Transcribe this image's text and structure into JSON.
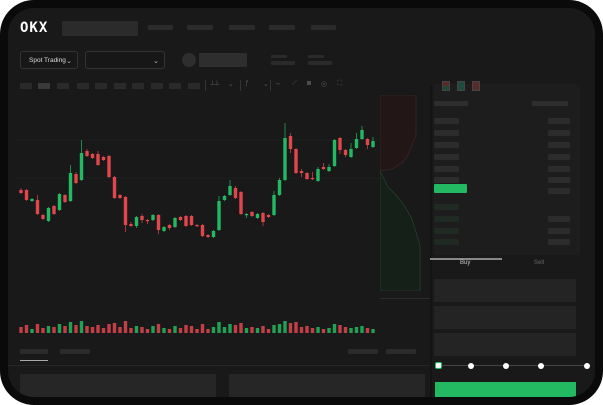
{
  "header": {
    "logo": "OKX"
  },
  "trade_bar": {
    "mode_select": "Spot Trading",
    "pair_select": ""
  },
  "orderbook": {
    "view_icons": [
      "orderbook-both-icon",
      "orderbook-bids-icon",
      "orderbook-asks-icon"
    ]
  },
  "order_form": {
    "tabs": [
      {
        "label": "Buy",
        "active": true
      },
      {
        "label": "Sell",
        "active": false
      }
    ],
    "slider_percent": 0
  },
  "colors": {
    "up": "#23b862",
    "down": "#e0474d",
    "bg": "#191919",
    "accent": "#23b862"
  },
  "chart_data": {
    "type": "candlestick",
    "ohlc": [
      [
        53,
        55,
        49,
        50
      ],
      [
        53,
        54,
        42,
        43
      ],
      [
        42,
        45,
        41,
        44
      ],
      [
        43,
        48,
        28,
        29
      ],
      [
        28,
        29,
        23,
        24
      ],
      [
        22,
        36,
        21,
        35
      ],
      [
        37,
        38,
        28,
        29
      ],
      [
        33,
        50,
        32,
        49
      ],
      [
        48,
        49,
        40,
        41
      ],
      [
        42,
        78,
        41,
        70
      ],
      [
        69,
        71,
        59,
        60
      ],
      [
        63,
        103,
        62,
        90
      ],
      [
        92,
        94,
        86,
        87
      ],
      [
        89,
        90,
        84,
        85
      ],
      [
        89,
        92,
        77,
        78
      ],
      [
        86,
        87,
        82,
        83
      ],
      [
        87,
        88,
        65,
        66
      ],
      [
        66,
        67,
        44,
        45
      ],
      [
        48,
        49,
        44,
        45
      ],
      [
        46,
        47,
        11,
        18
      ],
      [
        19,
        21,
        16,
        17
      ],
      [
        17,
        27,
        15,
        26
      ],
      [
        27,
        29,
        20,
        23
      ],
      [
        23,
        24,
        19,
        22
      ],
      [
        23,
        29,
        22,
        28
      ],
      [
        28,
        29,
        9,
        13
      ],
      [
        12,
        17,
        11,
        16
      ],
      [
        18,
        19,
        13,
        15
      ],
      [
        16,
        26,
        15,
        25
      ],
      [
        26,
        27,
        22,
        23
      ],
      [
        27,
        28,
        16,
        17
      ],
      [
        27,
        28,
        17,
        18
      ],
      [
        18,
        19,
        16,
        17
      ],
      [
        18,
        19,
        6,
        7
      ],
      [
        8,
        9,
        5,
        6
      ],
      [
        6,
        13,
        5,
        12
      ],
      [
        13,
        47,
        12,
        42
      ],
      [
        43,
        48,
        42,
        47
      ],
      [
        48,
        63,
        47,
        57
      ],
      [
        55,
        57,
        44,
        45
      ],
      [
        51,
        52,
        28,
        29
      ],
      [
        28,
        30,
        25,
        29
      ],
      [
        31,
        32,
        26,
        27
      ],
      [
        25,
        30,
        24,
        29
      ],
      [
        30,
        31,
        17,
        21
      ],
      [
        28,
        29,
        25,
        26
      ],
      [
        28,
        52,
        27,
        48
      ],
      [
        48,
        65,
        47,
        63
      ],
      [
        63,
        120,
        62,
        105
      ],
      [
        107,
        110,
        90,
        94
      ],
      [
        94,
        95,
        69,
        70
      ],
      [
        72,
        74,
        66,
        70
      ],
      [
        70,
        71,
        63,
        64
      ],
      [
        65,
        71,
        63,
        64
      ],
      [
        62,
        76,
        61,
        74
      ],
      [
        76,
        80,
        73,
        74
      ],
      [
        72,
        79,
        71,
        76
      ],
      [
        77,
        104,
        76,
        103
      ],
      [
        105,
        106,
        89,
        93
      ],
      [
        93,
        94,
        86,
        88
      ],
      [
        86,
        100,
        85,
        94
      ],
      [
        95,
        110,
        94,
        104
      ],
      [
        104,
        117,
        103,
        113
      ],
      [
        104,
        105,
        94,
        98
      ],
      [
        96,
        106,
        95,
        102
      ]
    ],
    "volume": [
      6,
      8,
      4,
      9,
      5,
      7,
      6,
      9,
      7,
      11,
      8,
      12,
      7,
      6,
      8,
      5,
      9,
      10,
      6,
      12,
      5,
      7,
      6,
      4,
      7,
      9,
      5,
      4,
      7,
      5,
      8,
      7,
      4,
      9,
      4,
      6,
      11,
      6,
      9,
      8,
      10,
      5,
      6,
      5,
      7,
      4,
      8,
      9,
      12,
      10,
      11,
      6,
      7,
      5,
      6,
      4,
      5,
      9,
      8,
      6,
      5,
      6,
      7,
      5,
      4
    ],
    "depth": {
      "asks": "upper-left red area",
      "bids": "lower green area"
    }
  }
}
